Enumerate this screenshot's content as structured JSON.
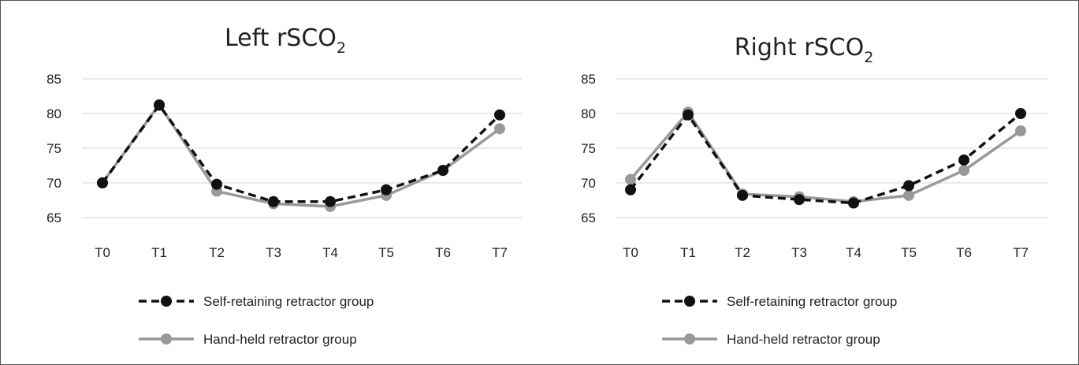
{
  "chart_data": [
    {
      "type": "line",
      "title": "Left rSCO",
      "title_subscript": "2",
      "categories": [
        "T0",
        "T1",
        "T2",
        "T3",
        "T4",
        "T5",
        "T6",
        "T7"
      ],
      "y_ticks": [
        "65",
        "70",
        "75",
        "80",
        "85"
      ],
      "ylim": [
        65,
        85
      ],
      "grid": true,
      "legend_position": "bottom",
      "series": [
        {
          "name": "Self-retaining retractor group",
          "values": [
            70.0,
            81.2,
            69.8,
            67.3,
            67.3,
            69.0,
            71.8,
            79.8
          ],
          "color": "#111111",
          "dashed": true
        },
        {
          "name": "Hand-held retractor group",
          "values": [
            70.0,
            81.3,
            68.8,
            67.0,
            66.6,
            68.2,
            71.8,
            77.8
          ],
          "color": "#999999",
          "dashed": false
        }
      ]
    },
    {
      "type": "line",
      "title": "Right  rSCO",
      "title_subscript": "2",
      "categories": [
        "T0",
        "T1",
        "T2",
        "T3",
        "T4",
        "T5",
        "T6",
        "T7"
      ],
      "y_ticks": [
        "65",
        "70",
        "75",
        "80",
        "85"
      ],
      "ylim": [
        65,
        85
      ],
      "grid": true,
      "legend_position": "bottom",
      "series": [
        {
          "name": "Self-retaining retractor group",
          "values": [
            69.0,
            79.8,
            68.2,
            67.6,
            67.1,
            69.6,
            73.3,
            80.0
          ],
          "color": "#111111",
          "dashed": true
        },
        {
          "name": "Hand-held retractor group",
          "values": [
            70.5,
            80.2,
            68.4,
            68.0,
            67.3,
            68.2,
            71.8,
            77.5
          ],
          "color": "#999999",
          "dashed": false
        }
      ]
    }
  ]
}
